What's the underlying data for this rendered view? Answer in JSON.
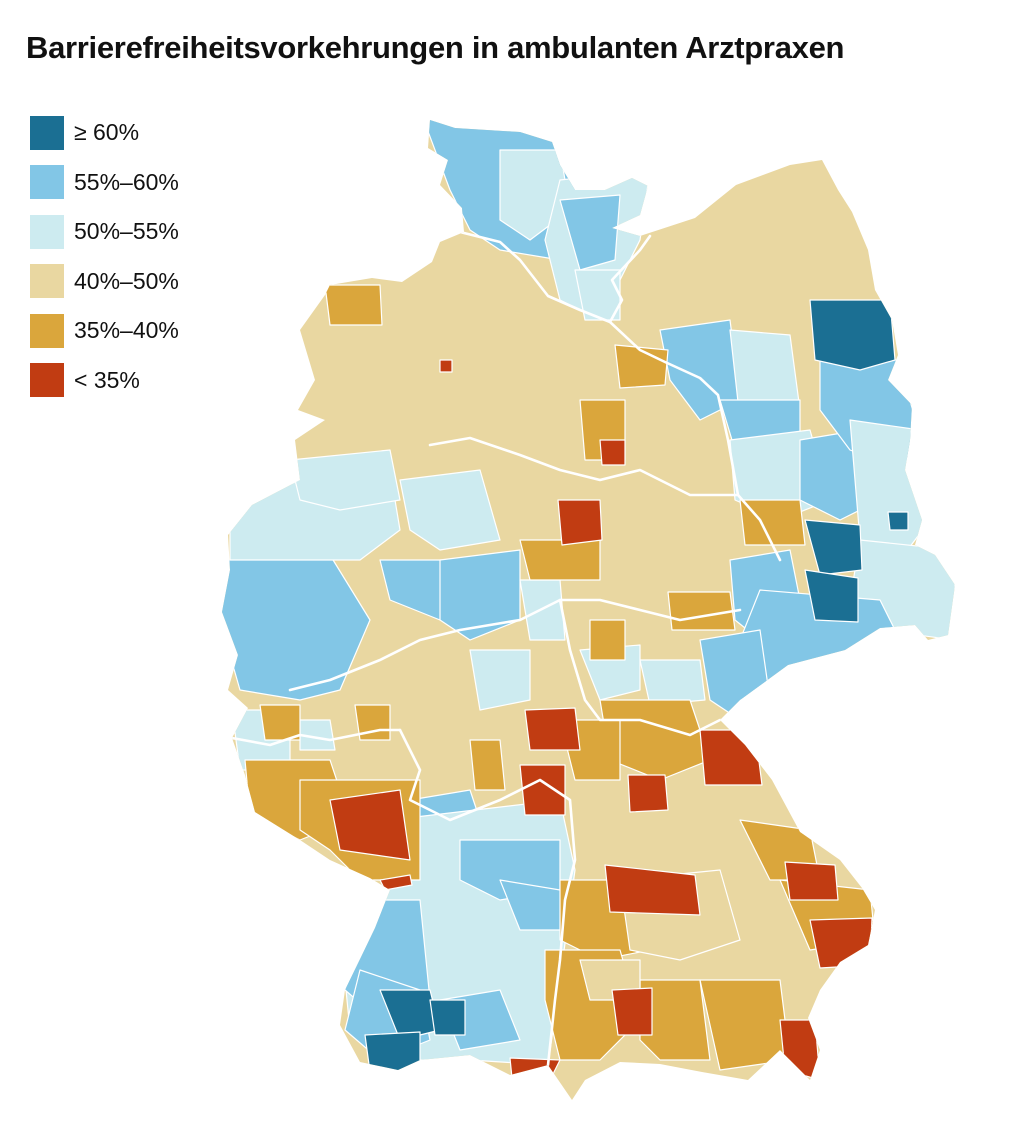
{
  "title": "Barrierefreiheitsvorkehrungen in ambulanten Arztpraxen",
  "legend": [
    {
      "label": "≥ 60%",
      "color": "#1b6f93"
    },
    {
      "label": "55%–60%",
      "color": "#82c6e6"
    },
    {
      "label": "50%–55%",
      "color": "#cdebf0"
    },
    {
      "label": "40%–50%",
      "color": "#e9d7a1"
    },
    {
      "label": "35%–40%",
      "color": "#daa63c"
    },
    {
      "label": "< 35%",
      "color": "#c13c12"
    }
  ],
  "border_color": "#ffffff"
}
